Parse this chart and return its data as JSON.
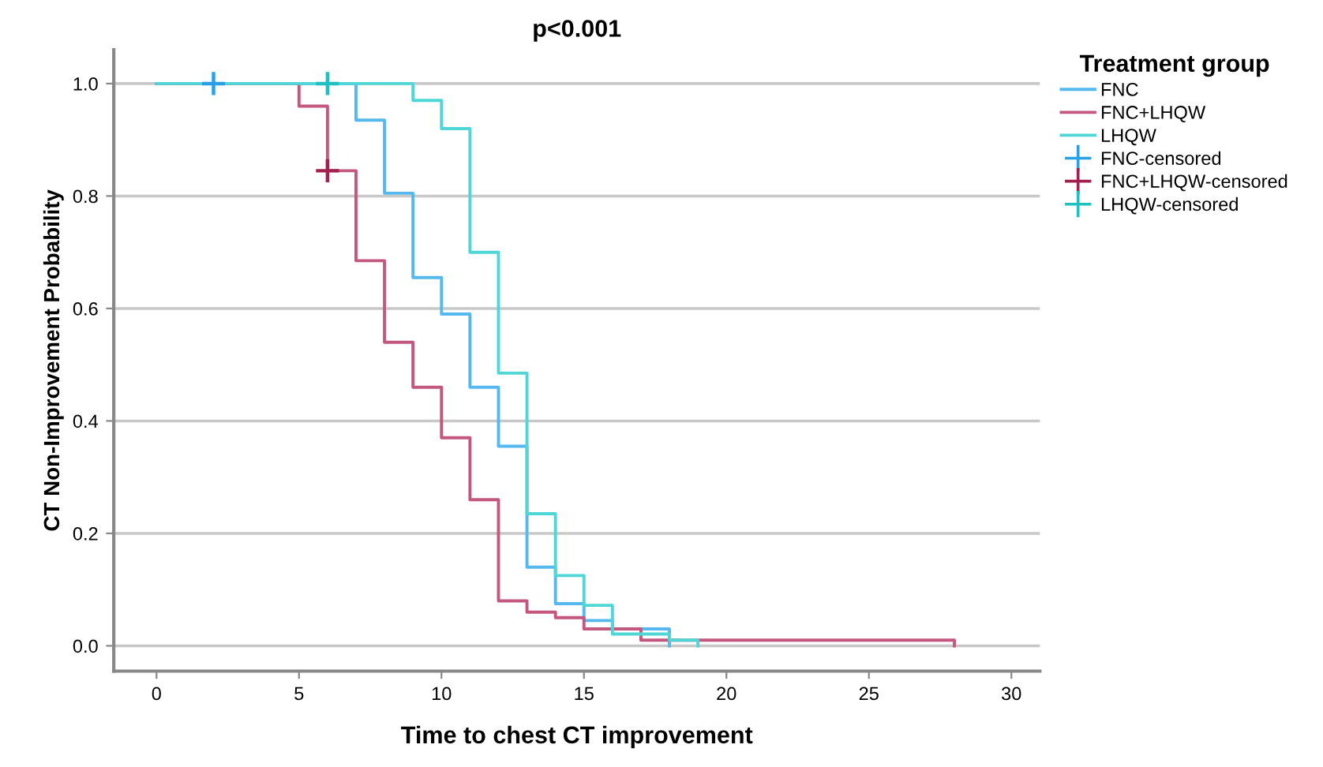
{
  "chart_data": {
    "type": "step",
    "title": "p<0.001",
    "xlabel": "Time to chest CT improvement",
    "ylabel": "CT Non-Improvement Probability",
    "legend_title": "Treatment group",
    "legend": "right",
    "grid": "y",
    "line_style": "solid",
    "xlim": [
      -1.5,
      31
    ],
    "ylim": [
      -0.045,
      1.06
    ],
    "xticks": [
      0,
      5,
      10,
      15,
      20,
      25,
      30
    ],
    "yticks": [
      {
        "value": 0,
        "label": "0.0"
      },
      {
        "value": 0.2,
        "label": "0.2"
      },
      {
        "value": 0.4,
        "label": "0.4"
      },
      {
        "value": 0.6,
        "label": "0.6"
      },
      {
        "value": 0.8,
        "label": "0.8"
      },
      {
        "value": 1,
        "label": "1.0"
      }
    ],
    "series": [
      {
        "name": "FNC",
        "color": "#55b8ee",
        "x": [
          0,
          7,
          8,
          9,
          10,
          11,
          12,
          13,
          14,
          15,
          16,
          18
        ],
        "values": [
          1,
          0.935,
          0.805,
          0.655,
          0.59,
          0.46,
          0.355,
          0.14,
          0.075,
          0.045,
          0.03,
          0
        ]
      },
      {
        "name": "FNC+LHQW",
        "color": "#c4577e",
        "x": [
          0,
          5,
          6,
          7,
          8,
          9,
          10,
          11,
          12,
          13,
          14,
          15,
          17,
          28
        ],
        "values": [
          1,
          0.96,
          0.845,
          0.685,
          0.54,
          0.46,
          0.37,
          0.26,
          0.08,
          0.06,
          0.05,
          0.03,
          0.01,
          0
        ]
      },
      {
        "name": "LHQW",
        "color": "#4fd6d6",
        "x": [
          0,
          9,
          10,
          11,
          12,
          13,
          14,
          15,
          16,
          18,
          19
        ],
        "values": [
          1,
          0.97,
          0.92,
          0.7,
          0.485,
          0.235,
          0.125,
          0.072,
          0.021,
          0.01,
          0
        ]
      },
      {
        "name": "FNC-censored",
        "type": "scatter",
        "marker": "cross",
        "color": "#2a9fe6",
        "x": [
          2
        ],
        "values": [
          1
        ]
      },
      {
        "name": "FNC+LHQW-censored",
        "type": "scatter",
        "marker": "cross",
        "color": "#a3204e",
        "x": [
          6
        ],
        "values": [
          0.845
        ]
      },
      {
        "name": "LHQW-censored",
        "type": "scatter",
        "marker": "cross",
        "color": "#1fc0c0",
        "x": [
          6
        ],
        "values": [
          1
        ]
      }
    ]
  }
}
